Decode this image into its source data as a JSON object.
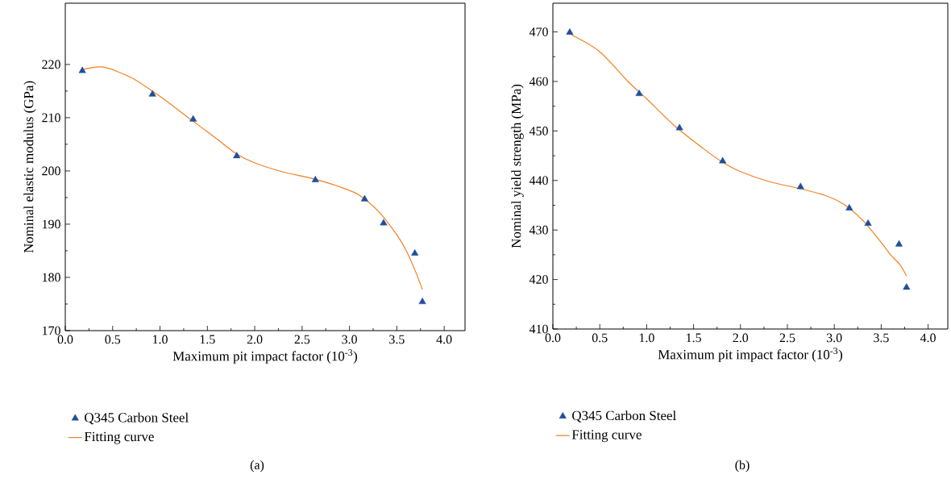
{
  "chart_data": [
    {
      "type": "scatter",
      "xlabel": "Maximum pit impact factor (10$^{-3}$)",
      "ylabel": "Nominal elastic modulus (GPa)",
      "xlim": [
        0,
        4.22
      ],
      "ylim": [
        170,
        231.5
      ],
      "xticks": [
        {
          "value": 0,
          "label": "0.0"
        },
        {
          "value": 0.5,
          "label": "0.5"
        },
        {
          "value": 1,
          "label": "1.0"
        },
        {
          "value": 1.5,
          "label": "1.5"
        },
        {
          "value": 2,
          "label": "2.0"
        },
        {
          "value": 2.5,
          "label": "2.5"
        },
        {
          "value": 3,
          "label": "3.0"
        },
        {
          "value": 3.5,
          "label": "3.5"
        },
        {
          "value": 4,
          "label": "4.0"
        }
      ],
      "yticks": [
        170,
        180,
        190,
        200,
        210,
        220
      ],
      "legend": "bottom left",
      "annotations": [
        "(a)"
      ],
      "series": [
        {
          "name": "Q345 Carbon Steel",
          "marker": "triangle",
          "color": "#1f4e9c",
          "x": [
            0.18,
            0.92,
            1.35,
            1.81,
            2.64,
            3.16,
            3.36,
            3.69,
            3.77
          ],
          "values": [
            218.8,
            214.4,
            209.7,
            202.8,
            198.3,
            194.7,
            190.2,
            184.5,
            175.4
          ]
        },
        {
          "name": "Fitting curve",
          "type": "line",
          "marker": "none",
          "color": "#f47f20",
          "x": [
            0.18,
            0.4,
            0.7,
            1.0,
            1.3,
            1.6,
            1.8,
            2.0,
            2.3,
            2.6,
            2.9,
            3.1,
            3.3,
            3.5,
            3.6,
            3.7,
            3.77
          ],
          "values": [
            219,
            219.5,
            217.5,
            214,
            210,
            206,
            203.3,
            201.5,
            199.8,
            198.6,
            197,
            195.5,
            192.5,
            188,
            185,
            181,
            177.7
          ]
        }
      ]
    },
    {
      "type": "scatter",
      "xlabel": "Maximum pit impact factor (10$^{-3}$)",
      "ylabel": "Nominal yield strength (MPa)",
      "xlim": [
        0,
        4.21
      ],
      "ylim": [
        410,
        475.8
      ],
      "xticks": [
        {
          "value": 0,
          "label": "0.0"
        },
        {
          "value": 0.5,
          "label": "0.5"
        },
        {
          "value": 1,
          "label": "1.0"
        },
        {
          "value": 1.5,
          "label": "1.5"
        },
        {
          "value": 2,
          "label": "2.0"
        },
        {
          "value": 2.5,
          "label": "2.5"
        },
        {
          "value": 3,
          "label": "3.0"
        },
        {
          "value": 3.5,
          "label": "3.5"
        },
        {
          "value": 4,
          "label": "4.0"
        }
      ],
      "yticks": [
        410,
        420,
        430,
        440,
        450,
        460,
        470
      ],
      "legend": "bottom left",
      "annotations": [
        "(b)"
      ],
      "series": [
        {
          "name": "Q345 Carbon Steel",
          "marker": "triangle",
          "color": "#1f4e9c",
          "x": [
            0.18,
            0.92,
            1.35,
            1.81,
            2.64,
            3.16,
            3.36,
            3.69,
            3.77
          ],
          "values": [
            469.9,
            457.5,
            450.6,
            443.9,
            438.7,
            434.4,
            431.3,
            427.1,
            418.4
          ]
        },
        {
          "name": "Fitting curve",
          "type": "line",
          "marker": "none",
          "color": "#f47f20",
          "x": [
            0.18,
            0.5,
            0.8,
            1.0,
            1.3,
            1.6,
            1.8,
            2.0,
            2.3,
            2.6,
            2.9,
            3.1,
            3.3,
            3.5,
            3.6,
            3.7,
            3.77
          ],
          "values": [
            469.6,
            466,
            460,
            456.5,
            451,
            446.5,
            443.8,
            441.8,
            439.8,
            438.5,
            437,
            435.2,
            432,
            427.5,
            425,
            423,
            420.7
          ]
        }
      ]
    }
  ]
}
